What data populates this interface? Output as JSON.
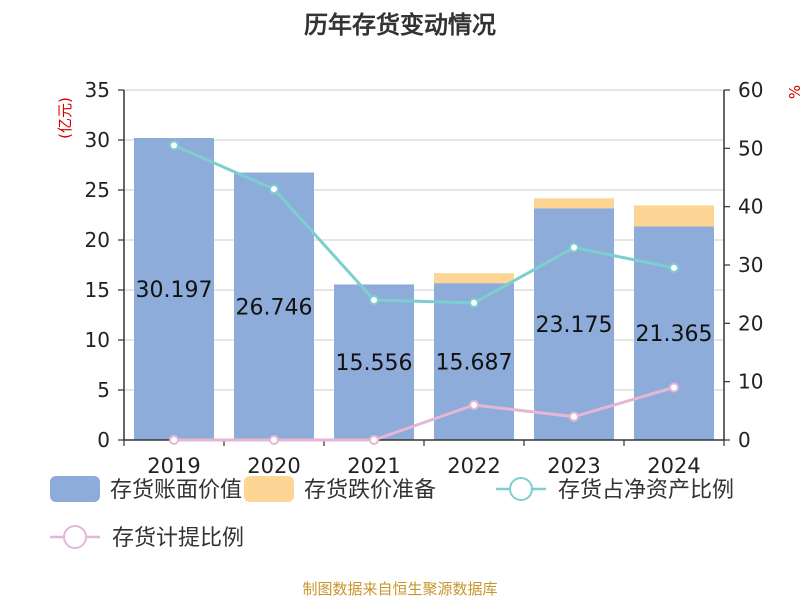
{
  "chart_data": {
    "type": "bar",
    "title": "历年存货变动情况",
    "categories": [
      "2019",
      "2020",
      "2021",
      "2022",
      "2023",
      "2024"
    ],
    "y_left": {
      "label": "(亿元)",
      "ylim": [
        0,
        35
      ],
      "ticks": [
        0,
        5,
        10,
        15,
        20,
        25,
        30,
        35
      ]
    },
    "y_right": {
      "label": "%",
      "ylim": [
        0,
        60
      ],
      "ticks": [
        0,
        10,
        20,
        30,
        40,
        50,
        60
      ]
    },
    "series": [
      {
        "name": "存货账面价值",
        "type": "bar",
        "axis": "left",
        "color": "#8eacd9",
        "values": [
          30.197,
          26.746,
          15.556,
          15.687,
          23.175,
          21.365
        ],
        "labels": [
          "30.197",
          "26.746",
          "15.556",
          "15.687",
          "23.175",
          "21.365"
        ]
      },
      {
        "name": "存货跌价准备",
        "type": "bar",
        "axis": "left",
        "stacked": true,
        "color": "#fdd696",
        "values": [
          0,
          0,
          0,
          1.0,
          1.0,
          2.1
        ]
      },
      {
        "name": "存货占净资产比例",
        "type": "line",
        "axis": "right",
        "color": "#7dcfcf",
        "values": [
          50.5,
          43.0,
          24.0,
          23.5,
          33.0,
          29.5
        ]
      },
      {
        "name": "存货计提比例",
        "type": "line",
        "axis": "right",
        "color": "#e6b6d6",
        "values": [
          0,
          0,
          0,
          6.0,
          4.0,
          9.0
        ]
      }
    ],
    "grid": true,
    "legend_position": "bottom"
  },
  "source": "制图数据来自恒生聚源数据库"
}
